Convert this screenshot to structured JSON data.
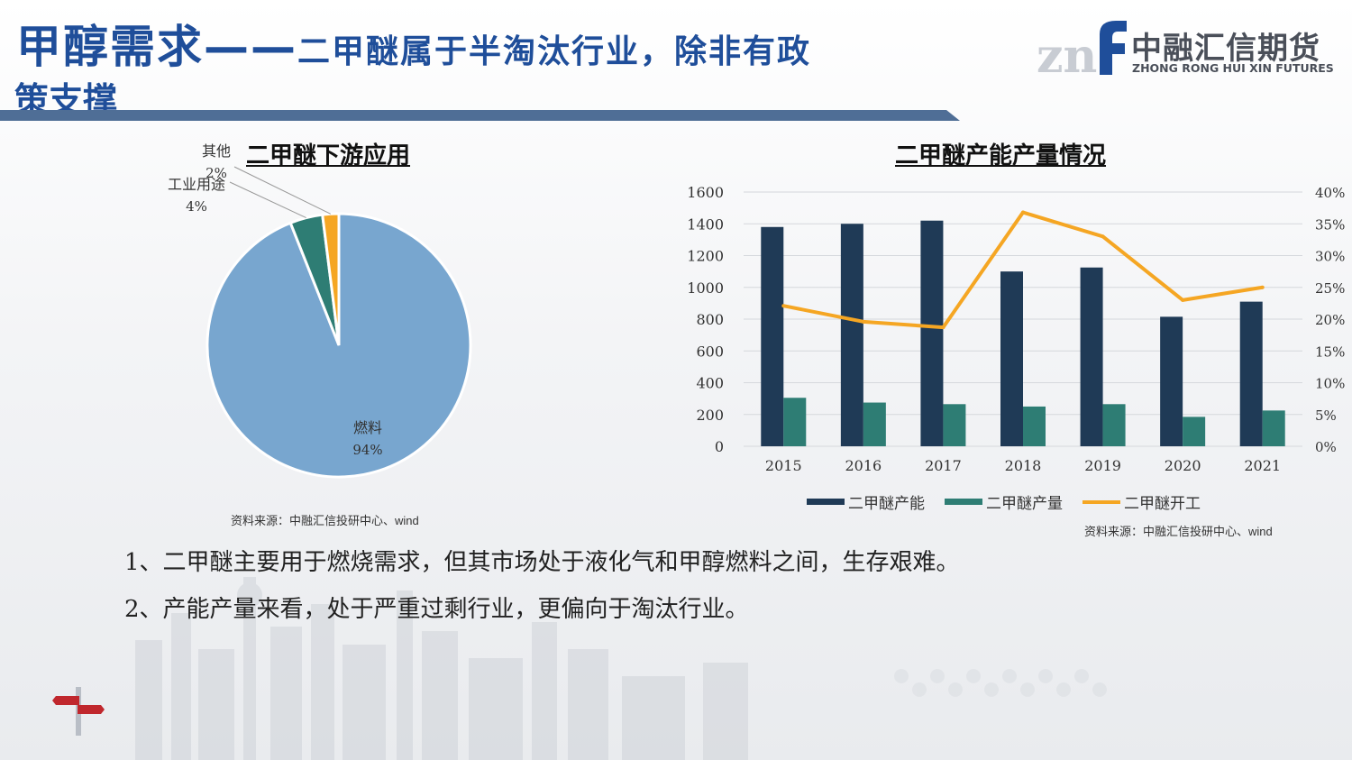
{
  "header": {
    "title_main": "甲醇需求——",
    "title_sub": "二甲醚属于半淘汰行业，除非有政",
    "title_line2": "策支撑",
    "logo_zh": "中融汇信期货",
    "logo_en": "ZHONG RONG HUI XIN FUTURES",
    "accent": "#1f4e9a"
  },
  "chart_data": [
    {
      "type": "pie",
      "title": "二甲醚下游应用",
      "slices": [
        {
          "label": "燃料",
          "value": 94,
          "pct_label": "94%",
          "color": "#78a6cf"
        },
        {
          "label": "工业用途",
          "value": 4,
          "pct_label": "4%",
          "color": "#2e7d74"
        },
        {
          "label": "其他",
          "value": 2,
          "pct_label": "2%",
          "color": "#f5a623"
        }
      ],
      "source": "资料来源：中融汇信投研中心、wind"
    },
    {
      "type": "bar",
      "title": "二甲醚产能产量情况",
      "categories": [
        "2015",
        "2016",
        "2017",
        "2018",
        "2019",
        "2020",
        "2021"
      ],
      "series": [
        {
          "name": "二甲醚产能",
          "kind": "bar",
          "axis": "left",
          "color": "#1f3a56",
          "values": [
            1380,
            1400,
            1420,
            1100,
            1125,
            815,
            910
          ]
        },
        {
          "name": "二甲醚产量",
          "kind": "bar",
          "axis": "left",
          "color": "#2e7d74",
          "values": [
            305,
            275,
            265,
            250,
            265,
            185,
            225
          ]
        },
        {
          "name": "二甲醚开工",
          "kind": "line",
          "axis": "right",
          "color": "#f5a623",
          "values": [
            22.1,
            19.6,
            18.7,
            36.8,
            33.0,
            23.0,
            25.0
          ]
        }
      ],
      "y_left": {
        "ylim": [
          0,
          1600
        ],
        "ticks": [
          "0",
          "200",
          "400",
          "600",
          "800",
          "1000",
          "1200",
          "1400",
          "1600"
        ]
      },
      "y_right": {
        "ylim": [
          0,
          40
        ],
        "ticks": [
          "0%",
          "5%",
          "10%",
          "15%",
          "20%",
          "25%",
          "30%",
          "35%",
          "40%"
        ]
      },
      "grid": true,
      "legend": "bottom",
      "source": "资料来源：中融汇信投研中心、wind"
    }
  ],
  "notes": [
    "1、二甲醚主要用于燃烧需求，但其市场处于液化气和甲醇燃料之间，生存艰难。",
    "2、产能产量来看，处于严重过剩行业，更偏向于淘汰行业。"
  ]
}
